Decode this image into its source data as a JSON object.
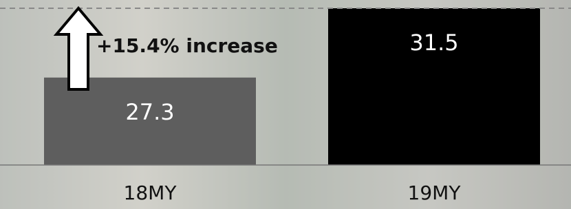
{
  "chart_data": {
    "type": "bar",
    "categories": [
      "18MY",
      "19MY"
    ],
    "series": [
      {
        "values": [
          27.3,
          31.5
        ],
        "colors": [
          "#5e5e5e",
          "#000000"
        ]
      }
    ],
    "ylim": [
      22,
      32
    ],
    "annotation": "+15.4% increase",
    "reference_line": true
  }
}
